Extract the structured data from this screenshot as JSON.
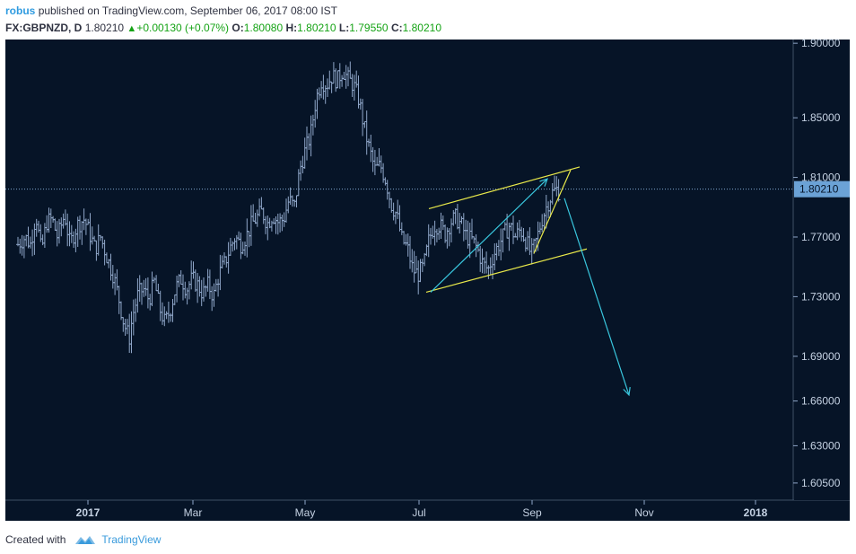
{
  "header": {
    "author": "robus",
    "published_text": "published on TradingView.com, September 06, 2017 08:00 IST",
    "symbol": "FX:GBPNZD, D",
    "last": "1.80210",
    "change": "+0.00130 (+0.07%)",
    "o_label": "O:",
    "o_value": "1.80080",
    "h_label": "H:",
    "h_value": "1.80210",
    "l_label": "L:",
    "l_value": "1.79550",
    "c_label": "C:",
    "c_value": "1.80210"
  },
  "footer": {
    "created_with": "Created with",
    "brand": "TradingView"
  },
  "colors": {
    "background": "#061427",
    "bars": "#8fa6c8",
    "channel": "#e8e84a",
    "arrow": "#39c6dd",
    "price_label_bg": "#6ba2d6"
  },
  "chart_data": {
    "type": "ohlc",
    "symbol": "FX:GBPNZD",
    "timeframe": "D",
    "x_labels": [
      "2017",
      "Mar",
      "May",
      "Jul",
      "Sep",
      "Nov",
      "2018"
    ],
    "y_ticks": [
      1.9,
      1.85,
      1.81,
      1.77,
      1.73,
      1.69,
      1.66,
      1.63,
      1.605
    ],
    "y_tick_labels": [
      "1.90000",
      "1.85000",
      "1.81000",
      "1.77000",
      "1.73000",
      "1.69000",
      "1.66000",
      "1.63000",
      "1.60500"
    ],
    "current_price": 1.8021,
    "current_price_label": "1.80210",
    "ylim": [
      1.5935,
      1.9025
    ],
    "price_path": [
      [
        0,
        1.765
      ],
      [
        8,
        1.77
      ],
      [
        14,
        1.765
      ],
      [
        20,
        1.785
      ],
      [
        26,
        1.76
      ],
      [
        32,
        1.78
      ],
      [
        38,
        1.782
      ],
      [
        44,
        1.77
      ],
      [
        52,
        1.785
      ],
      [
        58,
        1.765
      ],
      [
        66,
        1.778
      ],
      [
        74,
        1.782
      ],
      [
        80,
        1.772
      ],
      [
        86,
        1.762
      ],
      [
        92,
        1.77
      ],
      [
        100,
        1.755
      ],
      [
        106,
        1.745
      ],
      [
        112,
        1.73
      ],
      [
        118,
        1.712
      ],
      [
        124,
        1.702
      ],
      [
        128,
        1.718
      ],
      [
        134,
        1.732
      ],
      [
        140,
        1.735
      ],
      [
        146,
        1.728
      ],
      [
        152,
        1.74
      ],
      [
        158,
        1.722
      ],
      [
        164,
        1.712
      ],
      [
        170,
        1.722
      ],
      [
        176,
        1.736
      ],
      [
        182,
        1.742
      ],
      [
        188,
        1.735
      ],
      [
        194,
        1.742
      ],
      [
        200,
        1.738
      ],
      [
        206,
        1.732
      ],
      [
        212,
        1.738
      ],
      [
        218,
        1.73
      ],
      [
        224,
        1.745
      ],
      [
        230,
        1.752
      ],
      [
        236,
        1.762
      ],
      [
        242,
        1.77
      ],
      [
        248,
        1.765
      ],
      [
        254,
        1.77
      ],
      [
        260,
        1.778
      ],
      [
        266,
        1.783
      ],
      [
        272,
        1.787
      ],
      [
        278,
        1.779
      ],
      [
        284,
        1.785
      ],
      [
        290,
        1.78
      ],
      [
        296,
        1.782
      ],
      [
        302,
        1.795
      ],
      [
        308,
        1.79
      ],
      [
        314,
        1.815
      ],
      [
        320,
        1.828
      ],
      [
        326,
        1.838
      ],
      [
        332,
        1.862
      ],
      [
        338,
        1.875
      ],
      [
        344,
        1.872
      ],
      [
        350,
        1.878
      ],
      [
        356,
        1.875
      ],
      [
        362,
        1.882
      ],
      [
        368,
        1.876
      ],
      [
        374,
        1.872
      ],
      [
        380,
        1.862
      ],
      [
        386,
        1.843
      ],
      [
        392,
        1.828
      ],
      [
        398,
        1.815
      ],
      [
        404,
        1.818
      ],
      [
        410,
        1.808
      ],
      [
        416,
        1.792
      ],
      [
        422,
        1.785
      ],
      [
        428,
        1.768
      ],
      [
        434,
        1.763
      ],
      [
        440,
        1.748
      ],
      [
        446,
        1.745
      ],
      [
        452,
        1.75
      ],
      [
        458,
        1.768
      ],
      [
        464,
        1.778
      ],
      [
        470,
        1.778
      ],
      [
        476,
        1.772
      ],
      [
        482,
        1.78
      ],
      [
        488,
        1.783
      ],
      [
        494,
        1.778
      ],
      [
        500,
        1.77
      ],
      [
        506,
        1.768
      ],
      [
        512,
        1.762
      ],
      [
        518,
        1.752
      ],
      [
        524,
        1.748
      ],
      [
        530,
        1.758
      ],
      [
        536,
        1.765
      ],
      [
        542,
        1.772
      ],
      [
        548,
        1.778
      ],
      [
        554,
        1.77
      ],
      [
        560,
        1.775
      ],
      [
        566,
        1.768
      ],
      [
        572,
        1.758
      ],
      [
        578,
        1.768
      ],
      [
        584,
        1.782
      ],
      [
        590,
        1.792
      ],
      [
        596,
        1.8
      ],
      [
        600,
        1.802
      ],
      [
        604,
        1.8
      ]
    ],
    "drawings": {
      "channel_upper": [
        [
          458,
          1.789
        ],
        [
          626,
          1.817
        ]
      ],
      "channel_lower": [
        [
          455,
          1.733
        ],
        [
          634,
          1.762
        ]
      ],
      "wedge_side": [
        [
          575,
          1.759
        ],
        [
          616,
          1.815
        ]
      ],
      "arrow_up": [
        [
          460,
          1.733
        ],
        [
          590,
          1.809
        ]
      ],
      "arrow_down": [
        [
          609,
          1.796
        ],
        [
          681,
          1.664
        ]
      ]
    }
  }
}
